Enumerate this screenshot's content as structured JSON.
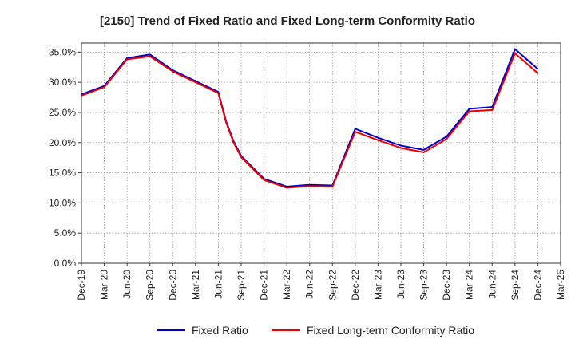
{
  "chart_data": {
    "type": "line",
    "title": "[2150]  Trend of Fixed Ratio and Fixed Long-term Conformity Ratio",
    "xlabel": "",
    "ylabel": "",
    "ylim": [
      0,
      36.5
    ],
    "y_ticks": [
      0,
      5,
      10,
      15,
      20,
      25,
      30,
      35
    ],
    "y_tick_labels": [
      "0.0%",
      "5.0%",
      "10.0%",
      "15.0%",
      "20.0%",
      "25.0%",
      "30.0%",
      "35.0%"
    ],
    "x_tick_labels": [
      "Dec-19",
      "Mar-20",
      "Jun-20",
      "Sep-20",
      "Dec-20",
      "Mar-21",
      "Jun-21",
      "Sep-21",
      "Dec-21",
      "Mar-22",
      "Jun-22",
      "Sep-22",
      "Dec-22",
      "Mar-23",
      "Jun-23",
      "Sep-23",
      "Dec-23",
      "Mar-24",
      "Jun-24",
      "Sep-24",
      "Dec-24",
      "Mar-25"
    ],
    "grid": true,
    "legend_position": "bottom",
    "series": [
      {
        "name": "Fixed Ratio",
        "color": "#0000cc",
        "points": [
          [
            "Dec-19",
            28.0
          ],
          [
            "Mar-20",
            29.4
          ],
          [
            "Jun-20",
            34.0
          ],
          [
            "Sep-20",
            34.6
          ],
          [
            "Dec-20",
            32.0
          ],
          [
            "Mar-21",
            30.2
          ],
          [
            "Jun-21",
            28.4
          ],
          [
            "Jul-21",
            23.6
          ],
          [
            "Aug-21",
            20.2
          ],
          [
            "Sep-21",
            17.8
          ],
          [
            "Dec-21",
            14.0
          ],
          [
            "Mar-22",
            12.7
          ],
          [
            "Jun-22",
            13.0
          ],
          [
            "Sep-22",
            12.9
          ],
          [
            "Dec-22",
            22.3
          ],
          [
            "Mar-23",
            20.8
          ],
          [
            "Jun-23",
            19.5
          ],
          [
            "Sep-23",
            18.8
          ],
          [
            "Dec-23",
            21.0
          ],
          [
            "Mar-24",
            25.6
          ],
          [
            "Jun-24",
            25.9
          ],
          [
            "Sep-24",
            35.5
          ],
          [
            "Dec-24",
            32.2
          ]
        ]
      },
      {
        "name": "Fixed Long-term Conformity Ratio",
        "color": "#ee0000",
        "points": [
          [
            "Dec-19",
            27.8
          ],
          [
            "Mar-20",
            29.2
          ],
          [
            "Jun-20",
            33.8
          ],
          [
            "Sep-20",
            34.3
          ],
          [
            "Dec-20",
            31.8
          ],
          [
            "Mar-21",
            30.0
          ],
          [
            "Jun-21",
            28.2
          ],
          [
            "Jul-21",
            23.4
          ],
          [
            "Aug-21",
            20.0
          ],
          [
            "Sep-21",
            17.6
          ],
          [
            "Dec-21",
            13.8
          ],
          [
            "Mar-22",
            12.5
          ],
          [
            "Jun-22",
            12.8
          ],
          [
            "Sep-22",
            12.7
          ],
          [
            "Dec-22",
            21.8
          ],
          [
            "Mar-23",
            20.4
          ],
          [
            "Jun-23",
            19.1
          ],
          [
            "Sep-23",
            18.4
          ],
          [
            "Dec-23",
            20.6
          ],
          [
            "Mar-24",
            25.2
          ],
          [
            "Jun-24",
            25.4
          ],
          [
            "Sep-24",
            34.8
          ],
          [
            "Dec-24",
            31.5
          ]
        ]
      }
    ]
  }
}
